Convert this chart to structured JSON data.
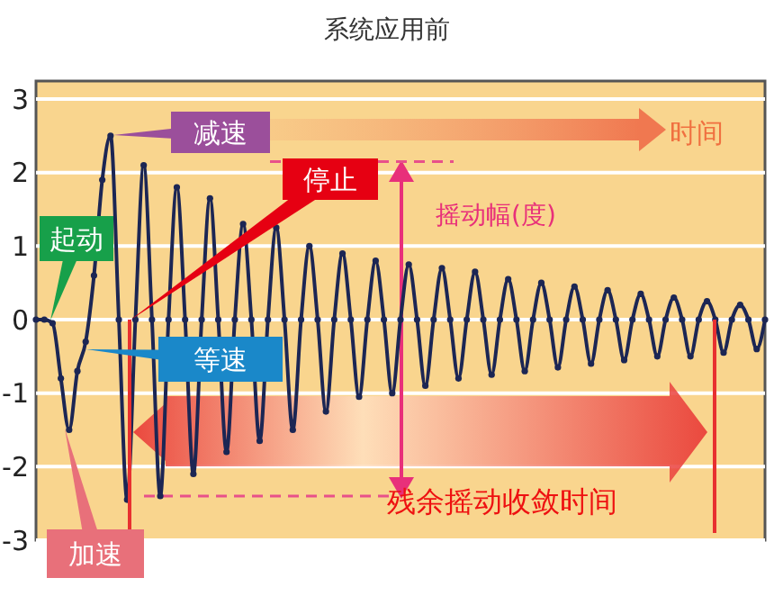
{
  "chart_data": {
    "type": "line",
    "title": "系统应用前",
    "categories": [
      null,
      null,
      null,
      null,
      null,
      null,
      null,
      null,
      null,
      null,
      null,
      null,
      null,
      null,
      null,
      null,
      null,
      null,
      null,
      null,
      null,
      null,
      null,
      null,
      null,
      null,
      null,
      null,
      null,
      null,
      null,
      null,
      null,
      null,
      null,
      null,
      null,
      null,
      null,
      null,
      null,
      null,
      null,
      null,
      null,
      null,
      null,
      null,
      null,
      null,
      null,
      null,
      null,
      null,
      null,
      null,
      null,
      null,
      null,
      null,
      null,
      null,
      null,
      null,
      null,
      null,
      null,
      null,
      null,
      null,
      null,
      null,
      null,
      null,
      null,
      null,
      null,
      null,
      null,
      null,
      null,
      null,
      null,
      null,
      null,
      null,
      null,
      null,
      null
    ],
    "series": [
      {
        "color": "#1c2654",
        "values": [
          0,
          0,
          -0.05,
          -0.8,
          -1.5,
          -0.7,
          -0.3,
          0.6,
          1.9,
          2.5,
          0,
          -2.45,
          0,
          2.1,
          0,
          -2.4,
          0,
          1.8,
          0,
          -2.1,
          0,
          1.65,
          0,
          -1.8,
          0,
          1.3,
          0,
          -1.65,
          0,
          1.25,
          0,
          -1.5,
          0,
          1.0,
          0,
          -1.25,
          0,
          0.9,
          0,
          -1.05,
          0,
          0.8,
          0,
          -1.0,
          0,
          0.75,
          0,
          -0.9,
          0,
          0.7,
          0,
          -0.8,
          0,
          0.65,
          0,
          -0.75,
          0,
          0.55,
          0,
          -0.7,
          0,
          0.5,
          0,
          -0.65,
          0,
          0.45,
          0,
          -0.6,
          0,
          0.4,
          0,
          -0.55,
          0,
          0.35,
          0,
          -0.5,
          0,
          0.3,
          0,
          -0.5,
          0,
          0.25,
          0,
          -0.45,
          0,
          0.2,
          0,
          -0.4,
          0
        ]
      }
    ],
    "ylim": [
      -3,
      3
    ],
    "yticks": [
      -3,
      -2,
      -1,
      0,
      1,
      2,
      3
    ],
    "grid": "y",
    "tick_labels": "y",
    "marker": "circle",
    "line_style": "solid",
    "ref_lines": [
      {
        "axis": "y",
        "value": 2.15,
        "color": "#e8508a",
        "line_style": "dashed"
      },
      {
        "axis": "y",
        "value": -2.4,
        "color": "#e8508a",
        "line_style": "dashed"
      }
    ],
    "annotations": [
      "减速",
      "停止",
      "起动",
      "等速",
      "加速",
      "时间",
      "摇动幅(度)",
      "残余摇动收敛时间"
    ]
  }
}
